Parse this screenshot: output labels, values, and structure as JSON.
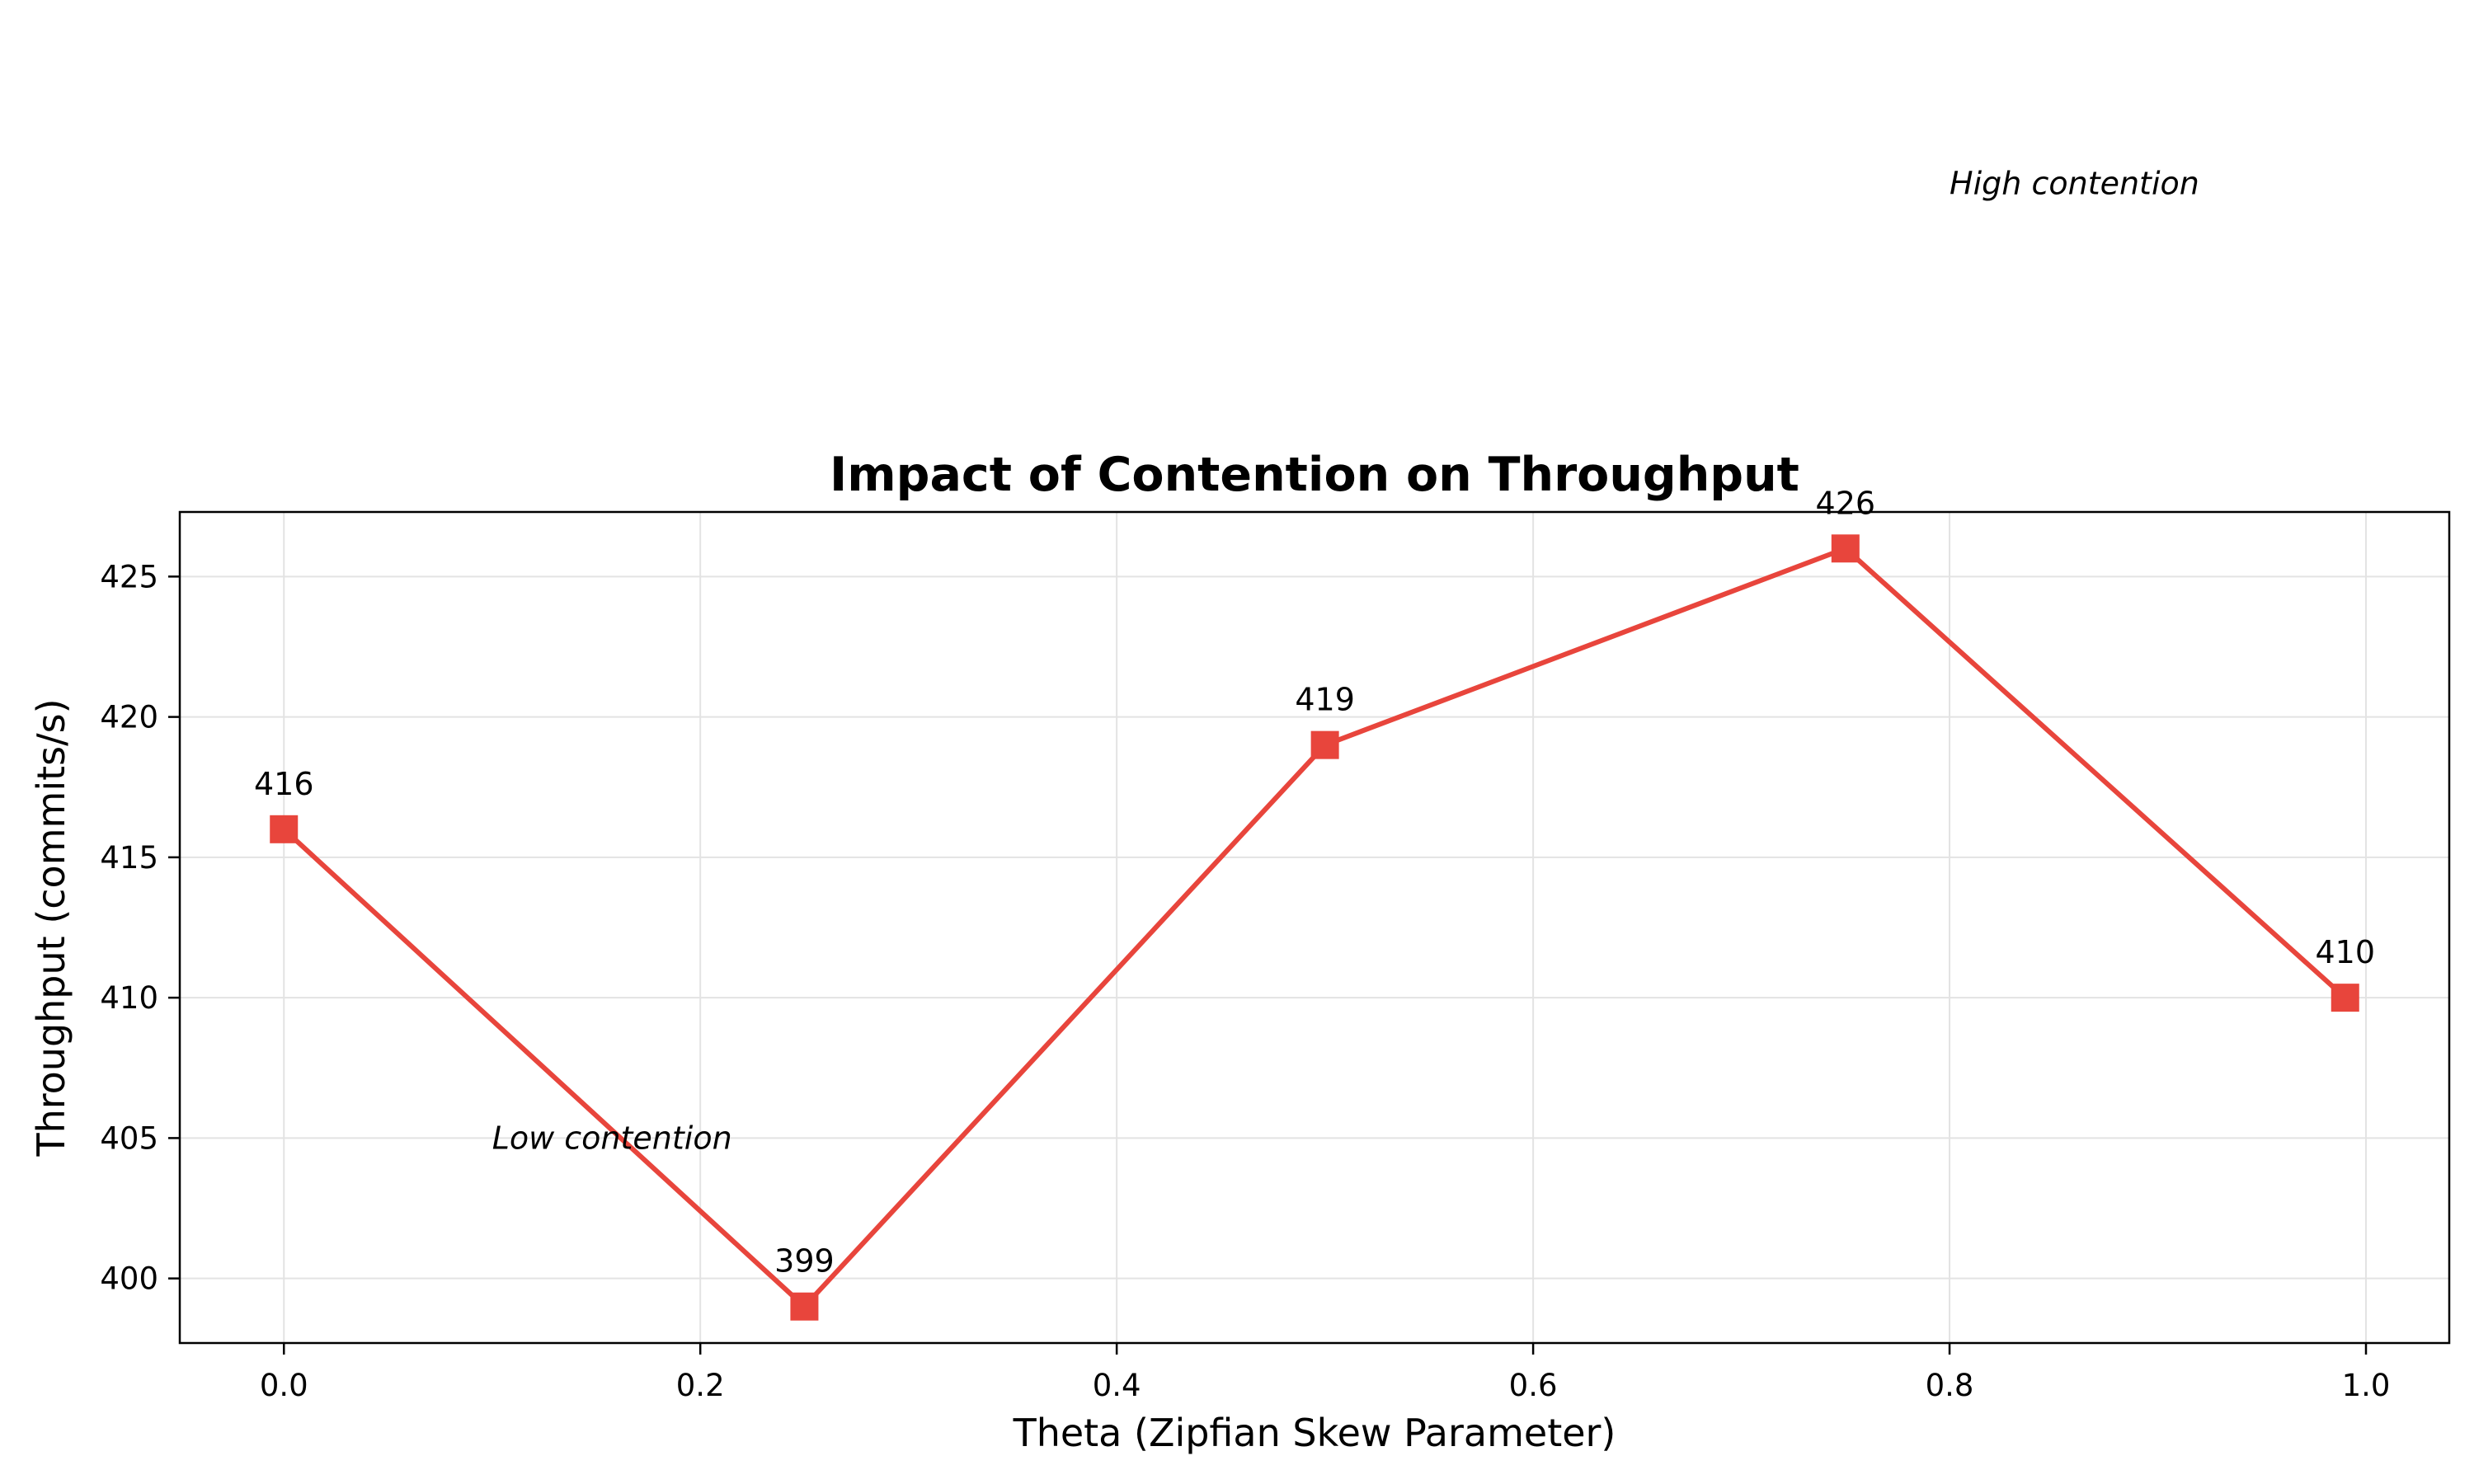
{
  "chart_data": {
    "type": "line",
    "title": "Impact of Contention on Throughput",
    "xlabel": "Theta (Zipfian Skew Parameter)",
    "ylabel": "Throughput (commits/s)",
    "xlim": [
      -0.05,
      1.04
    ],
    "ylim": [
      397.7,
      427.3
    ],
    "xticks": [
      "0.0",
      "0.2",
      "0.4",
      "0.6",
      "0.8",
      "1.0"
    ],
    "yticks": [
      "400",
      "405",
      "410",
      "415",
      "420",
      "425"
    ],
    "grid": true,
    "series": [
      {
        "color": "#e8453c",
        "marker": "square",
        "x": [
          0.0,
          0.25,
          0.5,
          0.75,
          0.99
        ],
        "y": [
          416,
          399,
          419,
          426,
          410
        ],
        "labels": [
          "416",
          "399",
          "419",
          "426",
          "410"
        ]
      }
    ],
    "annotations": [
      {
        "text": "Low contention",
        "x": 0.1,
        "y": 405
      },
      {
        "text": "High contention",
        "x": 0.8,
        "y": 439
      }
    ]
  }
}
